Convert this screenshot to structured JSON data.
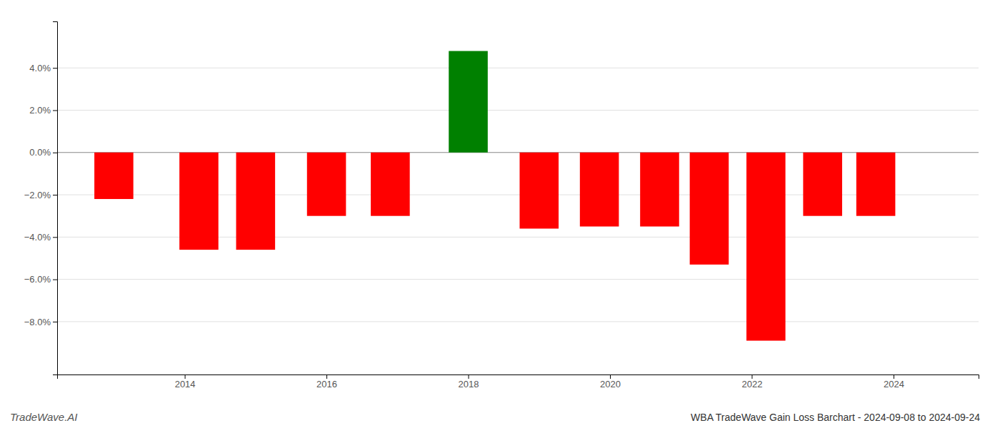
{
  "chart_data": {
    "type": "bar",
    "title": "WBA TradeWave Gain Loss Barchart - 2024-09-08 to 2024-09-24",
    "annotations": [
      {
        "text": "TradeWave.AI"
      }
    ],
    "x": [
      2013.0,
      2014.2,
      2015.0,
      2016.0,
      2016.9,
      2018.0,
      2019.0,
      2019.85,
      2020.7,
      2021.4,
      2022.2,
      2023.0,
      2023.75
    ],
    "values": [
      -2.2,
      -4.6,
      -4.6,
      -3.0,
      -3.0,
      4.8,
      -3.6,
      -3.5,
      -3.5,
      -5.3,
      -8.9,
      -3.0,
      -3.0
    ],
    "colors": [
      "#ff0000",
      "#ff0000",
      "#ff0000",
      "#ff0000",
      "#ff0000",
      "#008000",
      "#ff0000",
      "#ff0000",
      "#ff0000",
      "#ff0000",
      "#ff0000",
      "#ff0000",
      "#ff0000"
    ],
    "xlim": [
      2012.2,
      2025.2
    ],
    "ylim": [
      -10.5,
      6.2
    ],
    "xticks": [
      2014,
      2016,
      2018,
      2020,
      2022,
      2024
    ],
    "yticks": [
      {
        "value": -8.0,
        "label": "−8.0%"
      },
      {
        "value": -6.0,
        "label": "−6.0%"
      },
      {
        "value": -4.0,
        "label": "−4.0%"
      },
      {
        "value": -2.0,
        "label": "−2.0%"
      },
      {
        "value": 0.0,
        "label": "0.0%"
      },
      {
        "value": 2.0,
        "label": "2.0%"
      },
      {
        "value": 4.0,
        "label": "4.0%"
      }
    ],
    "grid": true
  }
}
